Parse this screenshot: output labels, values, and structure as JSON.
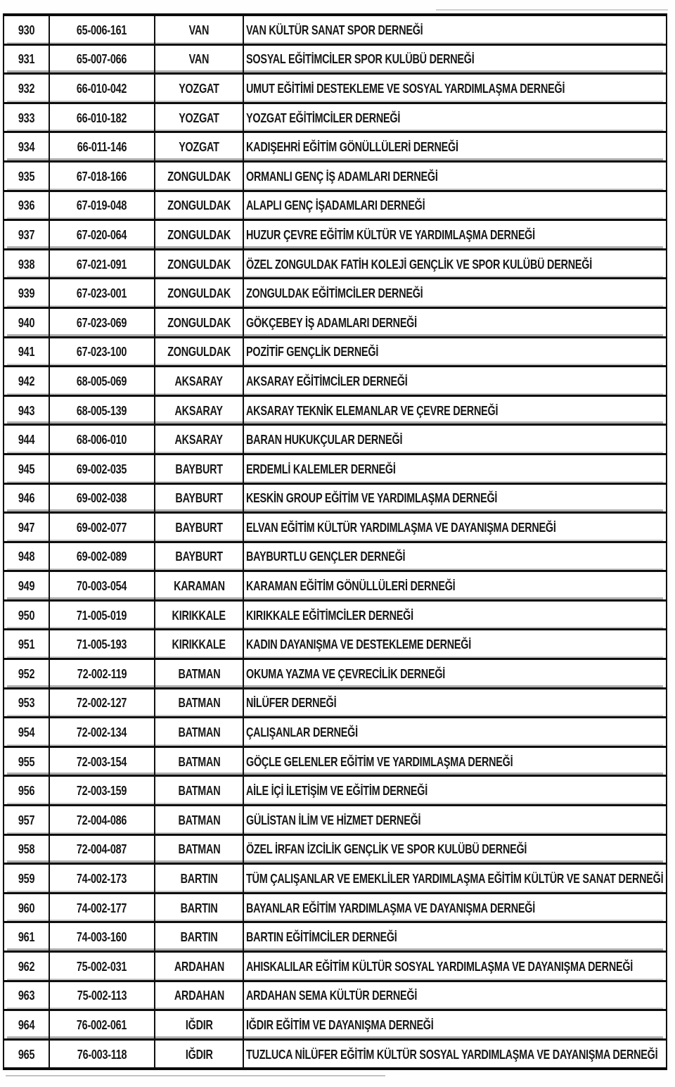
{
  "document": {
    "kind_label": "scanned registry table page",
    "ink_color": "#161616",
    "paper_color": "#fefefe"
  },
  "table": {
    "rows": [
      {
        "no": "930",
        "code": "65-006-161",
        "city": "VAN",
        "name": "VAN KÜLTÜR SANAT SPOR DERNEĞİ"
      },
      {
        "no": "931",
        "code": "65-007-066",
        "city": "VAN",
        "name": "SOSYAL EĞİTİMCİLER SPOR KULÜBÜ DERNEĞİ"
      },
      {
        "no": "932",
        "code": "66-010-042",
        "city": "YOZGAT",
        "name": "UMUT EĞİTİMİ DESTEKLEME VE SOSYAL YARDIMLAŞMA DERNEĞİ"
      },
      {
        "no": "933",
        "code": "66-010-182",
        "city": "YOZGAT",
        "name": "YOZGAT EĞİTİMCİLER DERNEĞİ"
      },
      {
        "no": "934",
        "code": "66-011-146",
        "city": "YOZGAT",
        "name": "KADIŞEHRİ EĞİTİM GÖNÜLLÜLERİ DERNEĞİ"
      },
      {
        "no": "935",
        "code": "67-018-166",
        "city": "ZONGULDAK",
        "name": "ORMANLI GENÇ İŞ ADAMLARI DERNEĞİ"
      },
      {
        "no": "936",
        "code": "67-019-048",
        "city": "ZONGULDAK",
        "name": "ALAPLI GENÇ İŞADAMLARI DERNEĞİ"
      },
      {
        "no": "937",
        "code": "67-020-064",
        "city": "ZONGULDAK",
        "name": "HUZUR ÇEVRE EĞİTİM KÜLTÜR VE YARDIMLAŞMA DERNEĞİ"
      },
      {
        "no": "938",
        "code": "67-021-091",
        "city": "ZONGULDAK",
        "name": "ÖZEL ZONGULDAK FATİH KOLEJİ GENÇLİK VE SPOR KULÜBÜ DERNEĞİ"
      },
      {
        "no": "939",
        "code": "67-023-001",
        "city": "ZONGULDAK",
        "name": "ZONGULDAK EĞİTİMCİLER DERNEĞİ"
      },
      {
        "no": "940",
        "code": "67-023-069",
        "city": "ZONGULDAK",
        "name": "GÖKÇEBEY İŞ ADAMLARI DERNEĞİ"
      },
      {
        "no": "941",
        "code": "67-023-100",
        "city": "ZONGULDAK",
        "name": "POZİTİF GENÇLİK DERNEĞİ"
      },
      {
        "no": "942",
        "code": "68-005-069",
        "city": "AKSARAY",
        "name": "AKSARAY EĞİTİMCİLER DERNEĞİ"
      },
      {
        "no": "943",
        "code": "68-005-139",
        "city": "AKSARAY",
        "name": "AKSARAY TEKNİK ELEMANLAR VE ÇEVRE DERNEĞİ"
      },
      {
        "no": "944",
        "code": "68-006-010",
        "city": "AKSARAY",
        "name": "BARAN HUKUKÇULAR DERNEĞİ"
      },
      {
        "no": "945",
        "code": "69-002-035",
        "city": "BAYBURT",
        "name": "ERDEMLİ KALEMLER DERNEĞİ"
      },
      {
        "no": "946",
        "code": "69-002-038",
        "city": "BAYBURT",
        "name": "KESKİN GROUP EĞİTİM VE YARDIMLAŞMA DERNEĞİ"
      },
      {
        "no": "947",
        "code": "69-002-077",
        "city": "BAYBURT",
        "name": "ELVAN EĞİTİM KÜLTÜR YARDIMLAŞMA VE DAYANIŞMA DERNEĞİ"
      },
      {
        "no": "948",
        "code": "69-002-089",
        "city": "BAYBURT",
        "name": "BAYBURTLU GENÇLER DERNEĞİ"
      },
      {
        "no": "949",
        "code": "70-003-054",
        "city": "KARAMAN",
        "name": "KARAMAN EĞİTİM GÖNÜLLÜLERİ DERNEĞİ"
      },
      {
        "no": "950",
        "code": "71-005-019",
        "city": "KIRIKKALE",
        "name": "KIRIKKALE EĞİTİMCİLER DERNEĞİ"
      },
      {
        "no": "951",
        "code": "71-005-193",
        "city": "KIRIKKALE",
        "name": "KADIN DAYANIŞMA VE DESTEKLEME DERNEĞİ"
      },
      {
        "no": "952",
        "code": "72-002-119",
        "city": "BATMAN",
        "name": "OKUMA YAZMA VE ÇEVRECİLİK DERNEĞİ"
      },
      {
        "no": "953",
        "code": "72-002-127",
        "city": "BATMAN",
        "name": "NİLÜFER DERNEĞİ"
      },
      {
        "no": "954",
        "code": "72-002-134",
        "city": "BATMAN",
        "name": "ÇALIŞANLAR DERNEĞİ"
      },
      {
        "no": "955",
        "code": "72-003-154",
        "city": "BATMAN",
        "name": "GÖÇLE GELENLER EĞİTİM VE YARDIMLAŞMA DERNEĞİ"
      },
      {
        "no": "956",
        "code": "72-003-159",
        "city": "BATMAN",
        "name": "AİLE İÇİ İLETİŞİM VE EĞİTİM DERNEĞİ"
      },
      {
        "no": "957",
        "code": "72-004-086",
        "city": "BATMAN",
        "name": "GÜLİSTAN İLİM VE HİZMET DERNEĞİ"
      },
      {
        "no": "958",
        "code": "72-004-087",
        "city": "BATMAN",
        "name": "ÖZEL İRFAN İZCİLİK GENÇLİK VE SPOR KULÜBÜ DERNEĞİ"
      },
      {
        "no": "959",
        "code": "74-002-173",
        "city": "BARTIN",
        "name": "TÜM ÇALIŞANLAR VE EMEKLİLER YARDIMLAŞMA EĞİTİM KÜLTÜR VE SANAT DERNEĞİ"
      },
      {
        "no": "960",
        "code": "74-002-177",
        "city": "BARTIN",
        "name": "BAYANLAR EĞİTİM YARDIMLAŞMA VE DAYANIŞMA DERNEĞİ"
      },
      {
        "no": "961",
        "code": "74-003-160",
        "city": "BARTIN",
        "name": "BARTIN EĞİTİMCİLER DERNEĞİ"
      },
      {
        "no": "962",
        "code": "75-002-031",
        "city": "ARDAHAN",
        "name": "AHISKALILAR EĞİTİM KÜLTÜR SOSYAL YARDIMLAŞMA VE DAYANIŞMA DERNEĞİ"
      },
      {
        "no": "963",
        "code": "75-002-113",
        "city": "ARDAHAN",
        "name": "ARDAHAN SEMA KÜLTÜR DERNEĞİ"
      },
      {
        "no": "964",
        "code": "76-002-061",
        "city": "IĞDIR",
        "name": "IĞDIR EĞİTİM VE DAYANIŞMA DERNEĞİ"
      },
      {
        "no": "965",
        "code": "76-003-118",
        "city": "IĞDIR",
        "name": "TUZLUCA NİLÜFER EĞİTİM KÜLTÜR SOSYAL YARDIMLAŞMA VE DAYANIŞMA DERNEĞİ"
      }
    ]
  }
}
